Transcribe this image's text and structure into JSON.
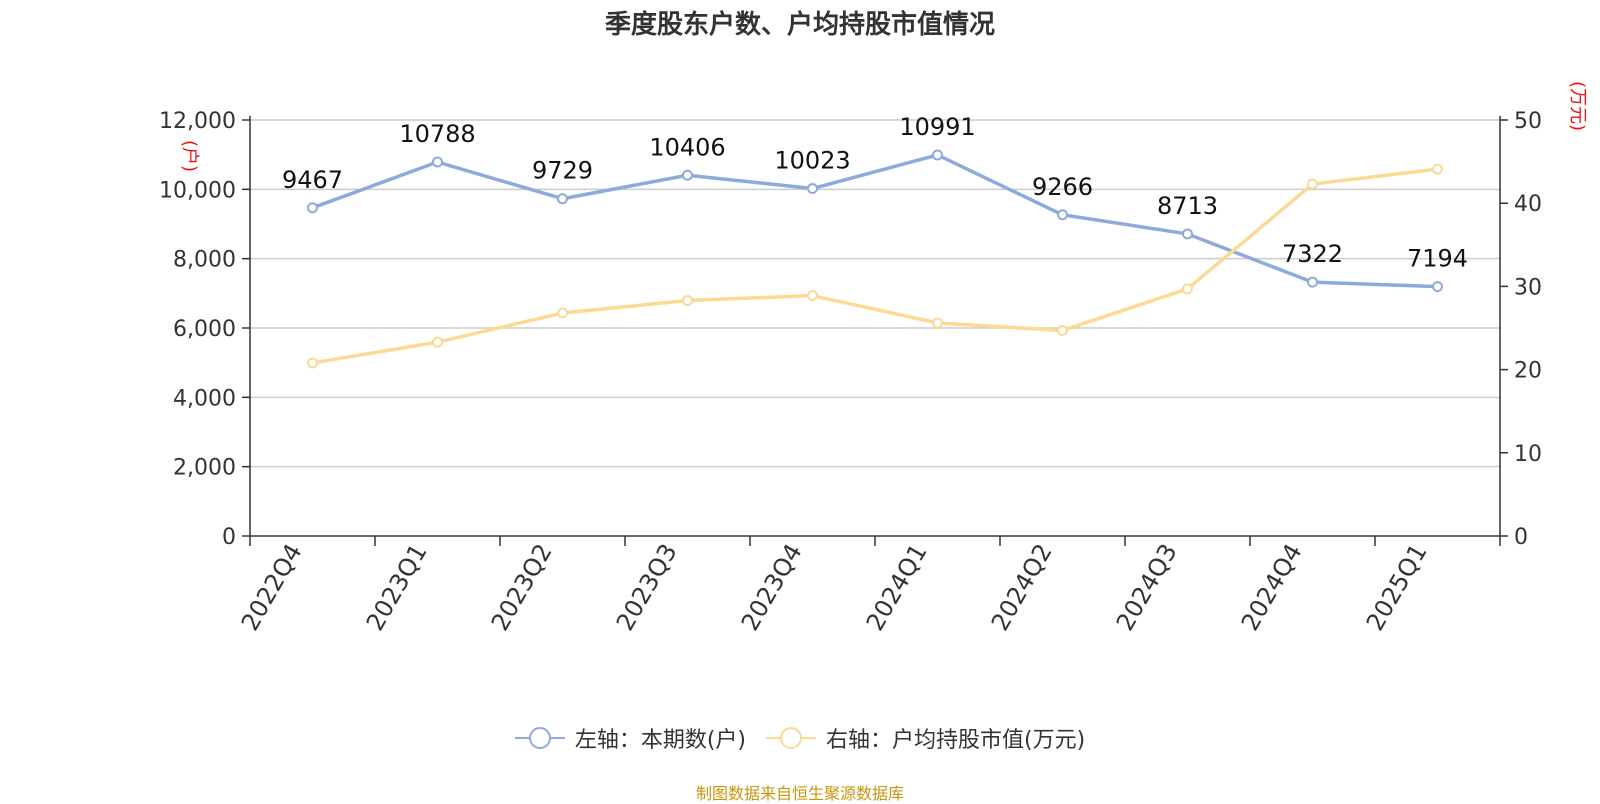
{
  "chart_data": {
    "type": "line",
    "title": "季度股东户数、户均持股市值情况",
    "categories": [
      "2022Q4",
      "2023Q1",
      "2023Q2",
      "2023Q3",
      "2023Q4",
      "2024Q1",
      "2024Q2",
      "2024Q3",
      "2024Q4",
      "2025Q1"
    ],
    "left_axis": {
      "unit_label": "(户)",
      "ylim": [
        0,
        12000
      ],
      "ticks": [
        "0",
        "2,000",
        "4,000",
        "6,000",
        "8,000",
        "10,000",
        "12,000"
      ]
    },
    "right_axis": {
      "unit_label": "(万元)",
      "ylim": [
        0,
        50
      ],
      "ticks": [
        "0",
        "10",
        "20",
        "30",
        "40",
        "50"
      ]
    },
    "series": [
      {
        "name": "左轴：本期数(户)",
        "axis": "left",
        "color": "#8eaadb",
        "values": [
          9467,
          10788,
          9729,
          10406,
          10023,
          10991,
          9266,
          8713,
          7322,
          7194
        ],
        "data_labels": [
          "9467",
          "10788",
          "9729",
          "10406",
          "10023",
          "10991",
          "9266",
          "8713",
          "7322",
          "7194"
        ]
      },
      {
        "name": "右轴：户均持股市值(万元)",
        "axis": "right",
        "color": "#fcd995",
        "values": [
          20.8,
          23.3,
          26.8,
          28.3,
          28.9,
          25.6,
          24.7,
          29.7,
          42.3,
          44.1
        ]
      }
    ],
    "grid": true,
    "legend_position": "bottom"
  },
  "source_note": "制图数据来自恒生聚源数据库",
  "colors": {
    "axis_unit": "#e8130f",
    "grid": "#cccccc",
    "axis": "#333333",
    "text": "#333333",
    "source": "#c8960c"
  }
}
